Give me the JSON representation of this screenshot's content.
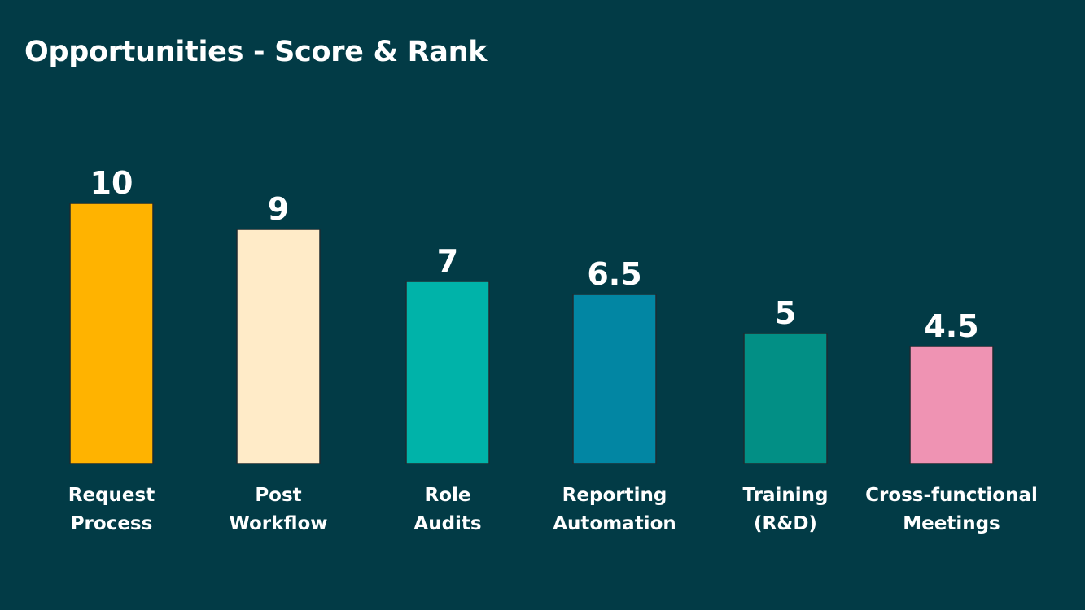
{
  "slide": {
    "title": "Opportunities - Score & Rank"
  },
  "chart_data": {
    "type": "bar",
    "title": "Opportunities - Score & Rank",
    "xlabel": "",
    "ylabel": "",
    "ylim": [
      0,
      10
    ],
    "grid": false,
    "legend": "none",
    "categories": [
      [
        "Request",
        "Process"
      ],
      [
        "Post",
        "Workflow"
      ],
      [
        "Role",
        "Audits"
      ],
      [
        "Reporting",
        "Automation"
      ],
      [
        "Training",
        "(R&D)"
      ],
      [
        "Cross-functional",
        "Meetings"
      ]
    ],
    "values": [
      10,
      9,
      7,
      6.5,
      5,
      4.5
    ],
    "value_labels": [
      "10",
      "9",
      "7",
      "6.5",
      "5",
      "4.5"
    ],
    "colors": [
      "#ffb300",
      "#ffebc8",
      "#00b3a9",
      "#0286a3",
      "#028f85",
      "#ef93b3"
    ]
  }
}
